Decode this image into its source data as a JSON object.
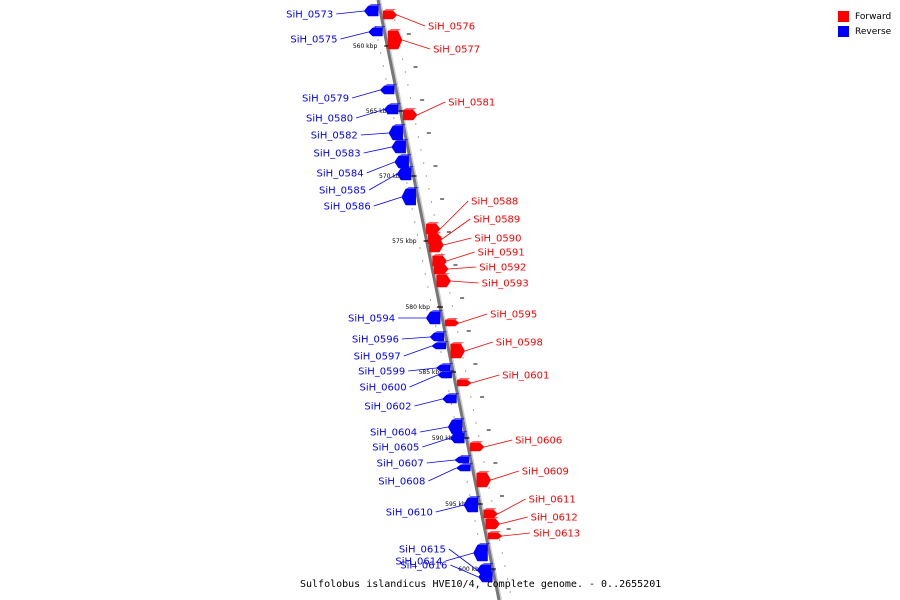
{
  "legend": {
    "forward_label": "Forward",
    "reverse_label": "Reverse",
    "forward_color": "#ff0000",
    "reverse_color": "#0000ff"
  },
  "caption": "Sulfolobus islandicus HVE10/4, complete genome. - 0..2655201",
  "ticks": [
    "560 kbp",
    "565 kbp",
    "570 kbp",
    "575 kbp",
    "580 kbp",
    "585 kbp",
    "590 kbp",
    "595 kbp",
    "600 kbp"
  ],
  "genes": [
    {
      "label": "SiH_0573",
      "strand": "reverse"
    },
    {
      "label": "SiH_0575",
      "strand": "reverse"
    },
    {
      "label": "SiH_0576",
      "strand": "forward"
    },
    {
      "label": "SiH_0577",
      "strand": "forward"
    },
    {
      "label": "SiH_0579",
      "strand": "reverse"
    },
    {
      "label": "SiH_0580",
      "strand": "reverse"
    },
    {
      "label": "SiH_0581",
      "strand": "forward"
    },
    {
      "label": "SiH_0582",
      "strand": "reverse"
    },
    {
      "label": "SiH_0583",
      "strand": "reverse"
    },
    {
      "label": "SiH_0584",
      "strand": "reverse"
    },
    {
      "label": "SiH_0585",
      "strand": "reverse"
    },
    {
      "label": "SiH_0586",
      "strand": "reverse"
    },
    {
      "label": "SiH_0588",
      "strand": "forward"
    },
    {
      "label": "SiH_0589",
      "strand": "forward"
    },
    {
      "label": "SiH_0590",
      "strand": "forward"
    },
    {
      "label": "SiH_0591",
      "strand": "forward"
    },
    {
      "label": "SiH_0592",
      "strand": "forward"
    },
    {
      "label": "SiH_0593",
      "strand": "forward"
    },
    {
      "label": "SiH_0594",
      "strand": "reverse"
    },
    {
      "label": "SiH_0595",
      "strand": "forward"
    },
    {
      "label": "SiH_0596",
      "strand": "reverse"
    },
    {
      "label": "SiH_0597",
      "strand": "reverse"
    },
    {
      "label": "SiH_0598",
      "strand": "forward"
    },
    {
      "label": "SiH_0599",
      "strand": "reverse"
    },
    {
      "label": "SiH_0600",
      "strand": "reverse"
    },
    {
      "label": "SiH_0601",
      "strand": "forward"
    },
    {
      "label": "SiH_0602",
      "strand": "reverse"
    },
    {
      "label": "SiH_0604",
      "strand": "reverse"
    },
    {
      "label": "SiH_0605",
      "strand": "reverse"
    },
    {
      "label": "SiH_0606",
      "strand": "forward"
    },
    {
      "label": "SiH_0607",
      "strand": "reverse"
    },
    {
      "label": "SiH_0608",
      "strand": "reverse"
    },
    {
      "label": "SiH_0609",
      "strand": "forward"
    },
    {
      "label": "SiH_0610",
      "strand": "reverse"
    },
    {
      "label": "SiH_0611",
      "strand": "forward"
    },
    {
      "label": "SiH_0612",
      "strand": "forward"
    },
    {
      "label": "SiH_0613",
      "strand": "forward"
    },
    {
      "label": "SiH_0614",
      "strand": "reverse"
    },
    {
      "label": "SiH_0615",
      "strand": "reverse"
    },
    {
      "label": "SiH_0616",
      "strand": "reverse"
    }
  ]
}
